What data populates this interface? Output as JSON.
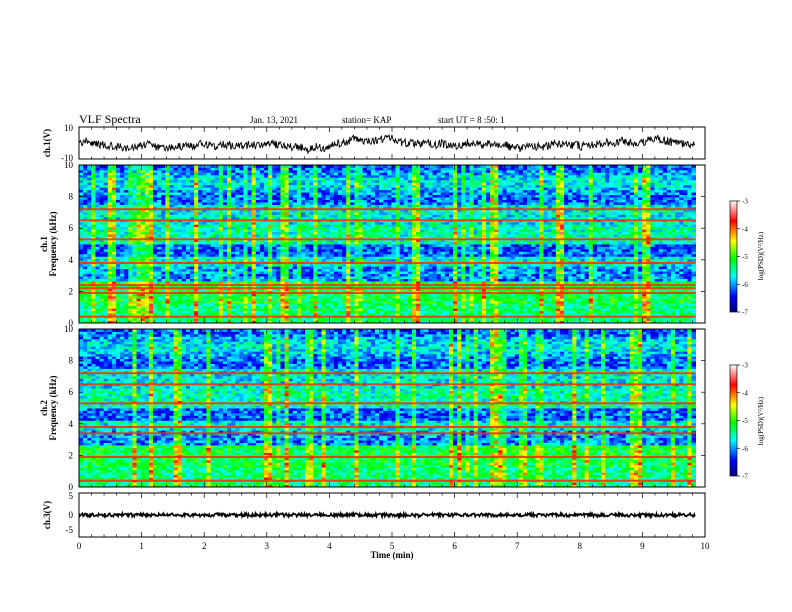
{
  "header": {
    "title": "VLF Spectra",
    "date": "Jan. 13, 2021",
    "station": "station= KAP",
    "start": "start  UT =   8 :50: 1"
  },
  "chart_data": [
    {
      "type": "line",
      "panel": "ch1-waveform",
      "ylabel": "ch.1(V)",
      "yticks": [
        "10",
        "-10"
      ],
      "ylim": [
        -10,
        10
      ],
      "xlim": [
        0,
        10
      ],
      "series": [
        {
          "color": "#000000",
          "y_range": [
            -8,
            9
          ]
        }
      ]
    },
    {
      "type": "heatmap",
      "panel": "ch1-spectrogram",
      "ylabel": "Frequency  (kHz)",
      "ylabel2": "ch.1",
      "yticks": [
        "0",
        "2",
        "4",
        "6",
        "8",
        "10"
      ],
      "ylim": [
        0,
        10
      ],
      "xlim": [
        0,
        10
      ],
      "colorbar": {
        "label": "log(PSD)(V²/Hz)",
        "ticks": [
          "-3",
          "-4",
          "-5",
          "-6",
          "-7"
        ],
        "range": [
          -7,
          -3
        ],
        "colors": [
          "#000080",
          "#0000ff",
          "#00ffff",
          "#00ff00",
          "#ffff00",
          "#ff0000",
          "#ffffff"
        ]
      },
      "bands_khz": [
        0.4,
        1.9,
        2.2,
        2.4,
        3.8,
        5.3,
        6.5,
        7.2
      ],
      "gap_min": 6.6
    },
    {
      "type": "heatmap",
      "panel": "ch2-spectrogram",
      "ylabel": "Frequency  (kHz)",
      "ylabel2": "ch.2",
      "yticks": [
        "0",
        "2",
        "4",
        "6",
        "8",
        "10"
      ],
      "ylim": [
        0,
        10
      ],
      "xlim": [
        0,
        10
      ],
      "colorbar": {
        "label": "log(PSD)(V²/Hz)",
        "ticks": [
          "-3",
          "-4",
          "-5",
          "-6",
          "-7"
        ],
        "range": [
          -7,
          -3
        ],
        "colors": [
          "#000080",
          "#0000ff",
          "#00ffff",
          "#00ff00",
          "#ffff00",
          "#ff0000",
          "#ffffff"
        ]
      },
      "bands_khz": [
        0.4,
        1.9,
        3.4,
        3.8,
        5.3,
        6.5,
        7.2
      ],
      "gap_min": 6.6
    },
    {
      "type": "line",
      "panel": "ch3-waveform",
      "ylabel": "ch.3(V)",
      "yticks": [
        "5",
        "0",
        "-5"
      ],
      "ylim": [
        -5,
        5
      ],
      "xlim": [
        0,
        10
      ],
      "series": [
        {
          "color": "#000000",
          "y_range": [
            -0.4,
            0.4
          ]
        }
      ]
    }
  ],
  "x_axis": {
    "label": "Time  (min)",
    "ticks": [
      "0",
      "1",
      "2",
      "3",
      "4",
      "5",
      "6",
      "7",
      "8",
      "9",
      "10"
    ]
  }
}
